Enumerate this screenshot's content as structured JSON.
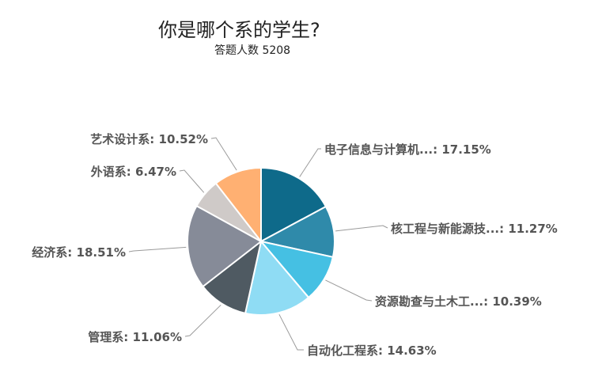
{
  "chart_data": {
    "type": "pie",
    "title": "你是哪个系的学生?",
    "subtitle": "答题人数 5208",
    "slices": [
      {
        "label": "电子信息与计算机...",
        "value": 17.15,
        "color": "#0e6a8a"
      },
      {
        "label": "核工程与新能源技...",
        "value": 11.27,
        "color": "#2f8aaa"
      },
      {
        "label": "资源勘查与土木工...",
        "value": 10.39,
        "color": "#45c0e3"
      },
      {
        "label": "自动化工程系",
        "value": 14.63,
        "color": "#8fdcf4"
      },
      {
        "label": "管理系",
        "value": 11.06,
        "color": "#4f5a62"
      },
      {
        "label": "经济系",
        "value": 18.51,
        "color": "#868b98"
      },
      {
        "label": "外语系",
        "value": 6.47,
        "color": "#cfcac8"
      },
      {
        "label": "艺术设计系",
        "value": 10.52,
        "color": "#ffb072"
      }
    ],
    "value_suffix": "%",
    "label_separator": ": ",
    "legend": "none"
  }
}
